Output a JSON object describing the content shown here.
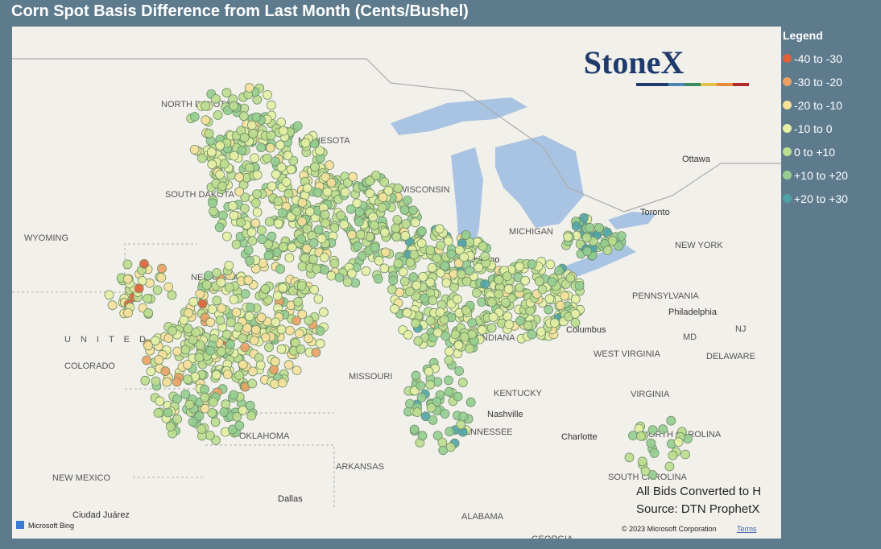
{
  "title": "Corn Spot Basis Difference from Last Month (Cents/Bushel)",
  "legend": {
    "title": "Legend",
    "items": [
      {
        "label": "-40 to -30",
        "color": "#e0603a"
      },
      {
        "label": "-30 to -20",
        "color": "#eda064"
      },
      {
        "label": "-20 to -10",
        "color": "#f6e09a"
      },
      {
        "label": "-10 to 0",
        "color": "#e6efa4"
      },
      {
        "label": "0 to +10",
        "color": "#bcdd8e"
      },
      {
        "label": "+10 to +20",
        "color": "#95cd90"
      },
      {
        "label": "+20 to +30",
        "color": "#4fa3a8"
      }
    ]
  },
  "logo": "StoneX",
  "notes": [
    "All Bids Converted to H",
    "Source: DTN ProphetX"
  ],
  "map_labels": [
    "NORTH DAKOTA",
    "MINNESOTA",
    "SOUTH DAKOTA",
    "WYOMING",
    "NEBRASKA",
    "COLORADO",
    "OKLAHOMA",
    "MISSOURI",
    "NEW MEXICO",
    "ARKANSAS",
    "TENNESSEE",
    "KENTUCKY",
    "WEST VIRGINIA",
    "VIRGINIA",
    "NORTH CAROLINA",
    "SOUTH CAROLINA",
    "ALABAMA",
    "GEORGIA",
    "PENNSYLVANIA",
    "NEW YORK",
    "MD",
    "DELAWARE",
    "NJ",
    "WISCONSIN",
    "MICHIGAN",
    "INDIANA",
    "Chicago",
    "Columbus",
    "Nashville",
    "Dallas",
    "Ottawa",
    "Toronto",
    "Philadelphia",
    "Charlotte",
    "Ciudad Juárez",
    "UNITED STATES"
  ],
  "attribution": {
    "brand": "Microsoft Bing",
    "copyright": "© 2023 Microsoft Corporation",
    "terms": "Terms"
  }
}
